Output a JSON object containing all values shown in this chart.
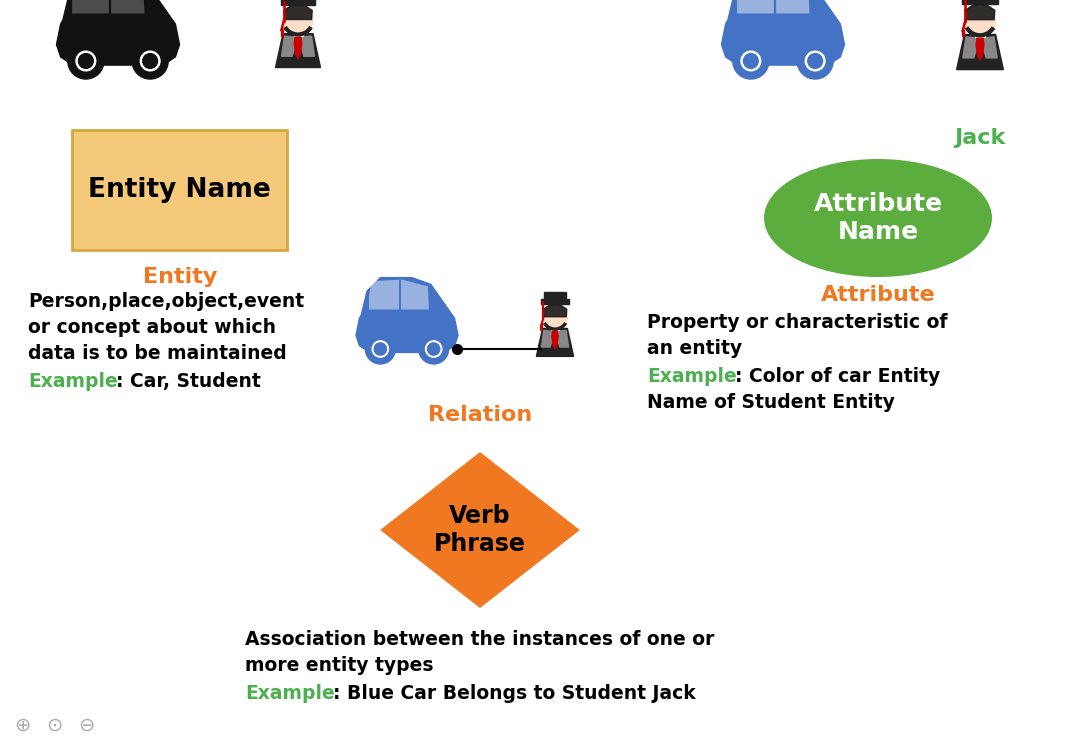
{
  "bg_color": "#ffffff",
  "orange_color": "#F07820",
  "green_color": "#4CAF50",
  "black_color": "#111111",
  "blue_car_color": "#4472C4",
  "entity_box_fill": "#F5C97A",
  "entity_box_edge": "#D4A840",
  "diamond_color": "#F07820",
  "ellipse_color": "#5BAD3E",
  "entity_box_label": "Entity Name",
  "attribute_ellipse_label": "Attribute\nName",
  "relation_diamond_label": "Verb\nPhrase",
  "jack_label": "Jack",
  "title_entity": "Entity",
  "title_attribute": "Attribute",
  "title_relation": "Relation",
  "entity_desc1": "Person,place,object,event",
  "entity_desc2": "or concept about which",
  "entity_desc3": "data is to be maintained",
  "entity_example_key": "Example",
  "entity_example_val": ": Car, Student",
  "attr_desc1": "Property or characteristic of",
  "attr_desc2": "an entity",
  "attr_example_key": "Example",
  "attr_example_val1": ": Color of car Entity",
  "attr_example_val2": "Name of Student Entity",
  "rel_desc1": "Association between the instances of one or",
  "rel_desc2": "more entity types",
  "rel_example_key": "Example",
  "rel_example_val": ": Blue Car Belongs to Student Jack"
}
